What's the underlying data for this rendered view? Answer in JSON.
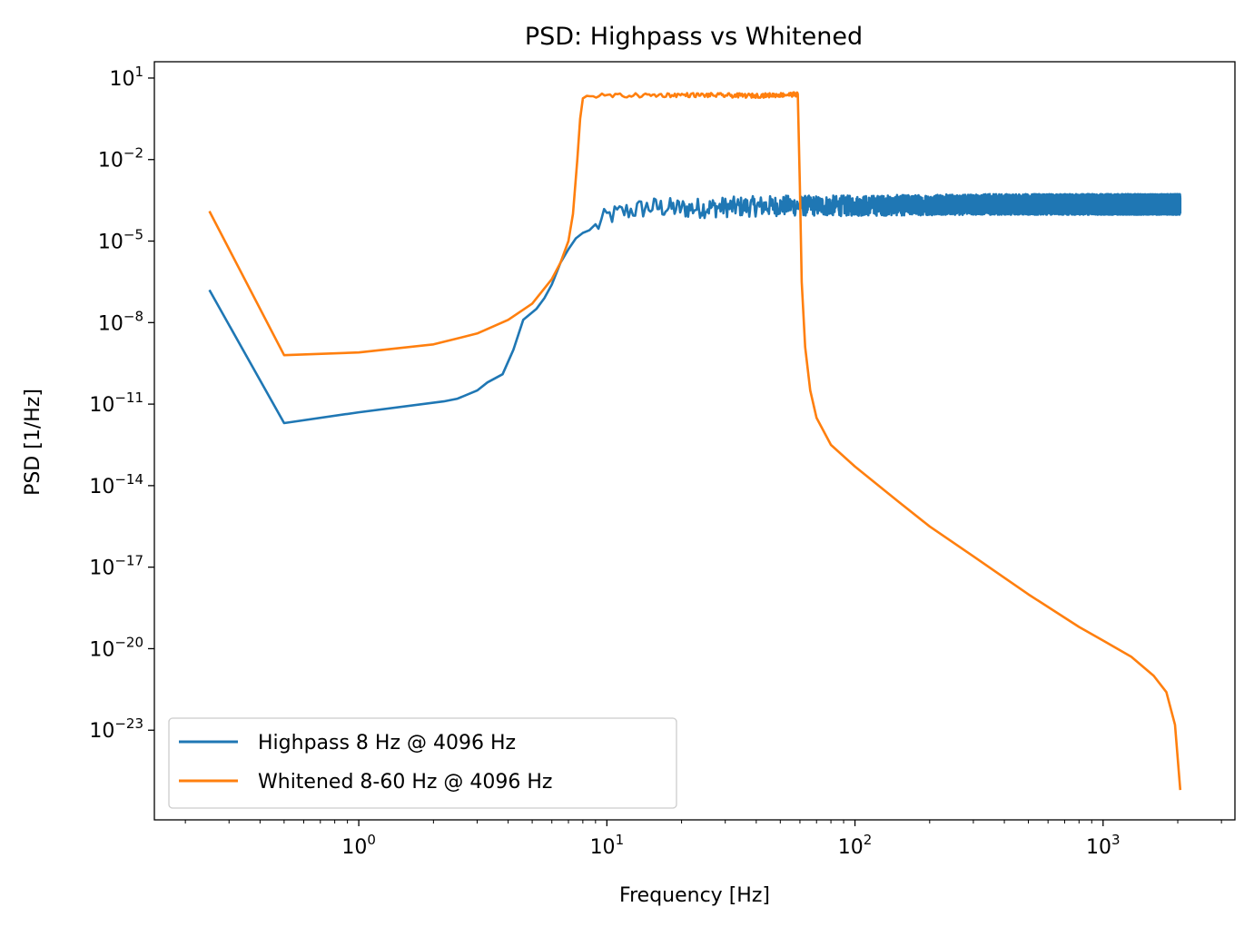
{
  "chart_data": {
    "type": "line",
    "title": "PSD: Highpass vs Whitened",
    "xlabel": "Frequency [Hz]",
    "ylabel": "PSD [1/Hz]",
    "xscale": "log",
    "yscale": "log",
    "xlim": [
      0.15,
      3400
    ],
    "ylim_exponents": [
      -26.3,
      1.6
    ],
    "x_ticks": [
      {
        "value": 1,
        "base": "10",
        "exp": "0"
      },
      {
        "value": 10,
        "base": "10",
        "exp": "1"
      },
      {
        "value": 100,
        "base": "10",
        "exp": "2"
      },
      {
        "value": 1000,
        "base": "10",
        "exp": "3"
      }
    ],
    "y_ticks": [
      {
        "exponent": 1,
        "base": "10",
        "exp": "1"
      },
      {
        "exponent": -2,
        "base": "10",
        "exp": "−2"
      },
      {
        "exponent": -5,
        "base": "10",
        "exp": "−5"
      },
      {
        "exponent": -8,
        "base": "10",
        "exp": "−8"
      },
      {
        "exponent": -11,
        "base": "10",
        "exp": "−11"
      },
      {
        "exponent": -14,
        "base": "10",
        "exp": "−14"
      },
      {
        "exponent": -17,
        "base": "10",
        "exp": "−17"
      },
      {
        "exponent": -20,
        "base": "10",
        "exp": "−20"
      },
      {
        "exponent": -23,
        "base": "10",
        "exp": "−23"
      }
    ],
    "legend_position": "lower-left",
    "series": [
      {
        "name": "Highpass 8 Hz @ 4096 Hz",
        "color": "#1f77b4",
        "noise_amp_log10": 0.38,
        "noise_from_hz": 9,
        "x": [
          0.25,
          0.5,
          1.0,
          2.2,
          2.5,
          3.0,
          3.3,
          3.8,
          4.2,
          4.6,
          5.2,
          5.6,
          6.0,
          6.5,
          7.0,
          7.5,
          8.0,
          8.5,
          9.0,
          10.0,
          12.0,
          15.0,
          20.0,
          30.0,
          50.0,
          100.0,
          300.0,
          1000.0,
          2048.0
        ],
        "y_log10": [
          -6.8,
          -11.7,
          -11.3,
          -10.9,
          -10.8,
          -10.5,
          -10.2,
          -9.9,
          -9.0,
          -7.9,
          -7.5,
          -7.1,
          -6.6,
          -5.8,
          -5.3,
          -4.9,
          -4.7,
          -4.6,
          -4.5,
          -4.1,
          -3.9,
          -3.75,
          -3.8,
          -3.75,
          -3.7,
          -3.7,
          -3.65,
          -3.65,
          -3.65
        ]
      },
      {
        "name": "Whitened 8-60 Hz @ 4096 Hz",
        "color": "#ff7f0e",
        "noise_amp_log10": 0.08,
        "noise_from_hz": 8.3,
        "noise_to_hz": 59,
        "x": [
          0.25,
          0.5,
          1.0,
          2.0,
          3.0,
          4.0,
          5.0,
          6.0,
          6.5,
          7.0,
          7.3,
          7.6,
          7.8,
          8.0,
          8.3,
          10.0,
          20.0,
          40.0,
          59.0,
          60.0,
          61.0,
          63.0,
          66.0,
          70.0,
          80.0,
          100.0,
          150.0,
          200.0,
          300.0,
          500.0,
          800.0,
          1000.0,
          1300.0,
          1600.0,
          1800.0,
          1950.0,
          2048.0
        ],
        "y_log10": [
          -3.9,
          -9.2,
          -9.1,
          -8.8,
          -8.4,
          -7.9,
          -7.3,
          -6.4,
          -5.8,
          -5.0,
          -4.0,
          -2.0,
          -0.5,
          0.25,
          0.35,
          0.35,
          0.38,
          0.35,
          0.4,
          -3.0,
          -6.5,
          -8.9,
          -10.5,
          -11.5,
          -12.5,
          -13.3,
          -14.6,
          -15.5,
          -16.6,
          -18.0,
          -19.2,
          -19.7,
          -20.3,
          -21.0,
          -21.6,
          -22.8,
          -25.2
        ]
      }
    ]
  }
}
